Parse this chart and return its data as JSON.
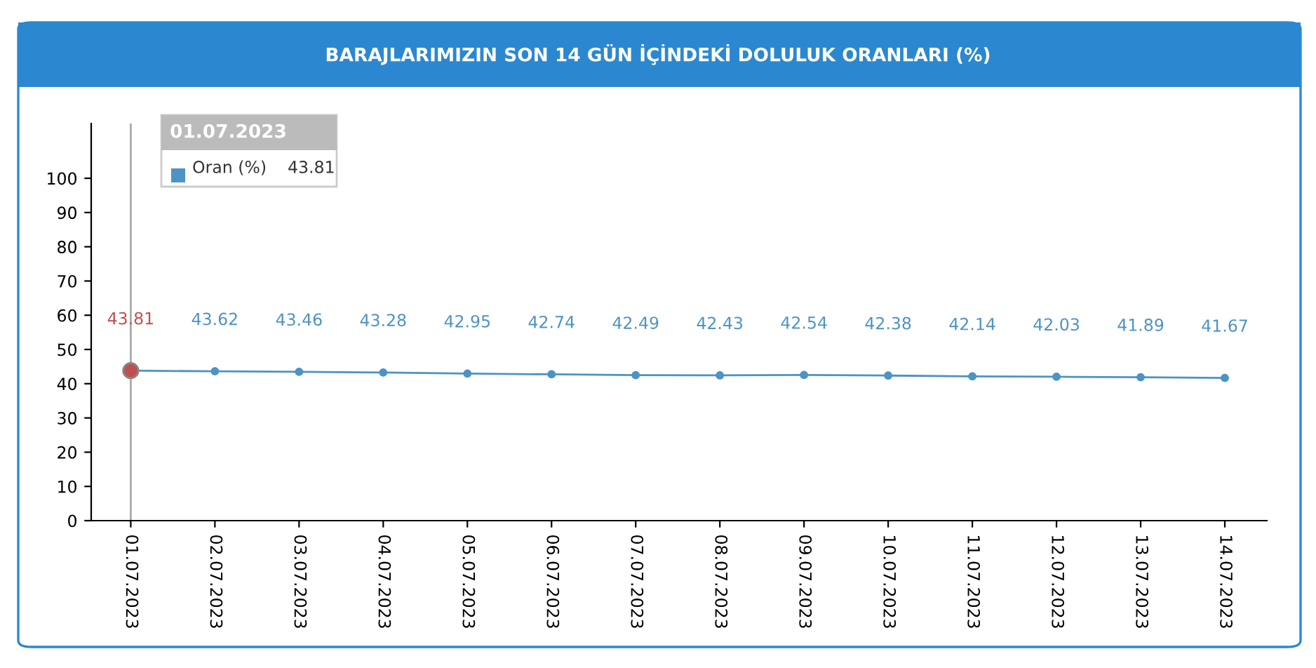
{
  "chart_data": {
    "type": "line",
    "title": "BARAJLARIMIZIN SON 14 GÜN İÇİNDEKİ DOLULUK ORANLARI (%)",
    "categories": [
      "01.07.2023",
      "02.07.2023",
      "03.07.2023",
      "04.07.2023",
      "05.07.2023",
      "06.07.2023",
      "07.07.2023",
      "08.07.2023",
      "09.07.2023",
      "10.07.2023",
      "11.07.2023",
      "12.07.2023",
      "13.07.2023",
      "14.07.2023"
    ],
    "series": [
      {
        "name": "Oran (%)",
        "color": "#4d93c4",
        "colors": [
          "#c0504d",
          "#4d93c4",
          "#4d93c4",
          "#4d93c4",
          "#4d93c4",
          "#4d93c4",
          "#4d93c4",
          "#4d93c4",
          "#4d93c4",
          "#4d93c4",
          "#4d93c4",
          "#4d93c4",
          "#4d93c4",
          "#4d93c4"
        ],
        "values": [
          43.81,
          43.62,
          43.46,
          43.28,
          42.95,
          42.74,
          42.49,
          42.43,
          42.54,
          42.38,
          42.14,
          42.03,
          41.89,
          41.67
        ]
      }
    ],
    "legend_title": "01.07.2023",
    "annotations": [
      "43.81"
    ],
    "ref_lines": [
      {
        "axis": "x",
        "value": "01.07.2023",
        "label": null,
        "color": "#aaaaaa"
      }
    ],
    "ylim": [
      0,
      116
    ],
    "yticks": [
      0,
      10,
      20,
      30,
      40,
      50,
      60,
      70,
      80,
      90,
      100
    ],
    "marker": "circle",
    "line_style": "solid",
    "data_labels": true,
    "legend": "top left",
    "grid": false
  }
}
